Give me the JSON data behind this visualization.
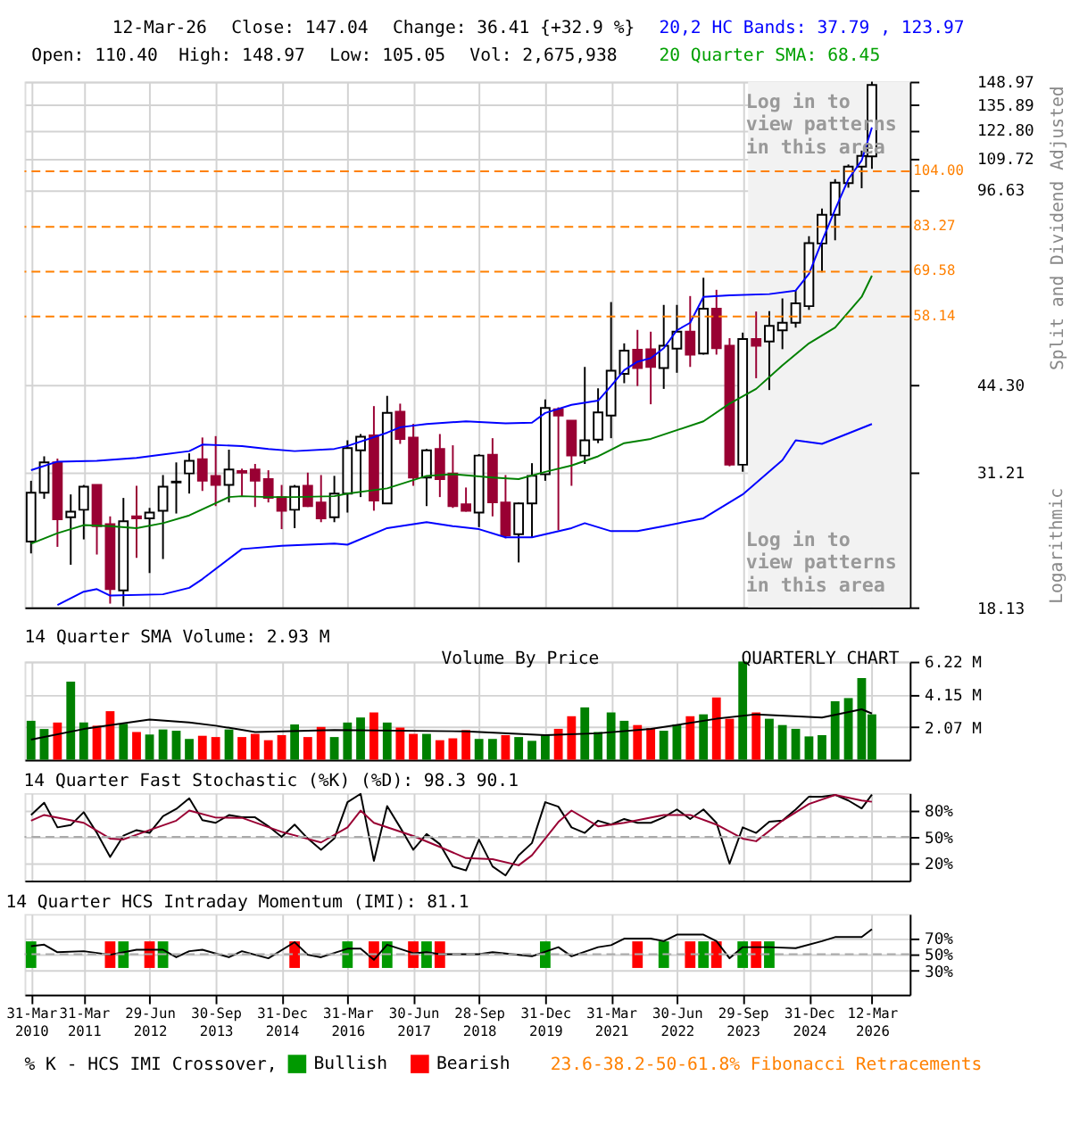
{
  "chart_data": [
    {
      "type": "candlestick",
      "x": [
        "2010-03-31",
        "2010-06-30",
        "2010-09-30",
        "2010-12-31",
        "2011-03-31",
        "2011-06-30",
        "2011-09-30",
        "2011-12-31",
        "2012-03-31",
        "2012-06-29",
        "2012-09-30",
        "2012-12-31",
        "2013-03-31",
        "2013-06-30",
        "2013-09-30",
        "2013-12-31",
        "2014-03-31",
        "2014-06-30",
        "2014-09-30",
        "2014-12-31",
        "2015-03-31",
        "2015-06-30",
        "2015-09-30",
        "2015-12-31",
        "2016-03-31",
        "2016-06-30",
        "2016-09-30",
        "2016-12-31",
        "2017-03-31",
        "2017-06-30",
        "2017-09-30",
        "2017-12-31",
        "2018-03-31",
        "2018-06-30",
        "2018-09-28",
        "2018-12-31",
        "2019-03-31",
        "2019-06-30",
        "2019-09-30",
        "2019-12-31",
        "2020-03-31",
        "2020-06-30",
        "2020-09-30",
        "2020-12-31",
        "2021-03-31",
        "2021-06-30",
        "2021-09-30",
        "2021-12-31",
        "2022-03-31",
        "2022-06-30",
        "2022-09-30",
        "2022-12-31",
        "2023-03-31",
        "2023-06-30",
        "2023-09-29",
        "2023-12-31",
        "2024-03-31",
        "2024-06-30",
        "2024-09-30",
        "2024-12-31",
        "2025-03-31",
        "2025-06-30",
        "2025-09-30",
        "2025-12-31",
        "2026-03-12"
      ],
      "ohlc": [
        [
          23.6,
          30.1,
          22.5,
          28.7
        ],
        [
          28.7,
          33.2,
          28.0,
          32.4
        ],
        [
          32.4,
          32.9,
          23.1,
          25.8
        ],
        [
          26.0,
          28.5,
          21.5,
          26.6
        ],
        [
          26.8,
          29.6,
          23.8,
          29.4
        ],
        [
          29.6,
          29.6,
          22.4,
          25.1
        ],
        [
          25.3,
          26.1,
          18.4,
          19.5
        ],
        [
          19.4,
          28.1,
          18.2,
          25.6
        ],
        [
          26.1,
          29.5,
          22.1,
          25.9
        ],
        [
          25.9,
          27.0,
          20.8,
          26.5
        ],
        [
          26.7,
          30.8,
          22.0,
          29.4
        ],
        [
          29.9,
          32.4,
          26.4,
          30.0
        ],
        [
          31.0,
          33.6,
          28.6,
          32.6
        ],
        [
          32.8,
          35.8,
          28.9,
          30.1
        ],
        [
          30.7,
          36.0,
          27.2,
          29.6
        ],
        [
          29.6,
          34.1,
          27.6,
          31.5
        ],
        [
          31.3,
          31.6,
          28.3,
          31.1
        ],
        [
          31.5,
          32.2,
          27.1,
          30.1
        ],
        [
          30.3,
          31.4,
          27.6,
          28.1
        ],
        [
          28.2,
          29.6,
          24.8,
          26.7
        ],
        [
          26.8,
          29.6,
          24.9,
          29.4
        ],
        [
          29.5,
          31.1,
          27.1,
          27.2
        ],
        [
          27.6,
          30.8,
          25.5,
          25.9
        ],
        [
          26.0,
          30.7,
          25.5,
          28.6
        ],
        [
          28.6,
          35.4,
          26.5,
          34.3
        ],
        [
          34.0,
          36.3,
          28.2,
          35.9
        ],
        [
          36.1,
          40.6,
          26.7,
          27.8
        ],
        [
          27.5,
          42.3,
          27.5,
          39.5
        ],
        [
          39.7,
          41.0,
          34.9,
          35.6
        ],
        [
          35.8,
          37.8,
          29.5,
          30.5
        ],
        [
          30.5,
          34.2,
          27.2,
          34.0
        ],
        [
          34.2,
          36.3,
          28.2,
          30.3
        ],
        [
          31.0,
          34.7,
          27.0,
          27.2
        ],
        [
          27.4,
          29.3,
          26.6,
          26.7
        ],
        [
          26.5,
          33.5,
          25.0,
          33.3
        ],
        [
          33.4,
          35.7,
          26.1,
          27.6
        ],
        [
          27.6,
          30.8,
          23.9,
          24.2
        ],
        [
          24.3,
          27.6,
          21.7,
          27.5
        ],
        [
          27.5,
          32.3,
          24.0,
          30.7
        ],
        [
          30.9,
          41.7,
          30.1,
          40.3
        ],
        [
          40.1,
          40.4,
          24.7,
          39.1
        ],
        [
          38.3,
          38.3,
          29.5,
          33.3
        ],
        [
          33.3,
          47.5,
          32.2,
          35.4
        ],
        [
          35.5,
          43.6,
          35.0,
          39.6
        ],
        [
          39.1,
          61.6,
          35.7,
          46.8
        ],
        [
          46.2,
          52.2,
          44.5,
          50.7
        ],
        [
          50.9,
          55.1,
          44.0,
          47.3
        ],
        [
          51.0,
          54.7,
          40.9,
          47.5
        ],
        [
          47.3,
          60.9,
          43.5,
          51.7
        ],
        [
          51.1,
          60.9,
          46.4,
          54.7
        ],
        [
          54.7,
          63.1,
          47.5,
          49.9
        ],
        [
          50.1,
          67.9,
          49.9,
          60.0
        ],
        [
          60.0,
          64.7,
          49.9,
          51.2
        ],
        [
          51.7,
          53.3,
          31.9,
          32.1
        ],
        [
          32.1,
          54.5,
          31.21,
          53.1
        ],
        [
          53.1,
          59.3,
          45.4,
          51.7
        ],
        [
          52.6,
          59.4,
          43.3,
          56.0
        ],
        [
          55.0,
          62.5,
          51.0,
          56.7
        ],
        [
          56.7,
          64.6,
          55.6,
          61.3
        ],
        [
          60.6,
          80.2,
          59.7,
          78.0
        ],
        [
          77.9,
          89.6,
          69.4,
          87.4
        ],
        [
          87.4,
          100.8,
          78.9,
          99.4
        ],
        [
          99.2,
          106.9,
          97.4,
          106.0
        ],
        [
          106.0,
          113.0,
          97.2,
          110.6
        ],
        [
          110.4,
          148.97,
          105.05,
          147.04
        ]
      ],
      "series": [
        {
          "type": "line",
          "color": "#0000ff",
          "x": [
            "2010-03-31",
            "2010-09-30",
            "2011-06-30",
            "2012-03-31",
            "2013-03-31",
            "2013-06-30",
            "2014-03-31",
            "2014-09-30",
            "2015-03-31",
            "2015-12-31",
            "2016-03-31",
            "2016-12-31",
            "2017-03-31",
            "2017-09-30",
            "2018-06-30",
            "2019-03-31",
            "2019-09-30",
            "2019-12-31",
            "2020-06-30",
            "2020-12-31",
            "2021-03-31",
            "2021-06-30",
            "2021-09-30",
            "2021-12-31",
            "2022-03-31",
            "2022-06-30",
            "2022-09-30",
            "2022-12-31",
            "2023-06-30",
            "2024-03-31",
            "2024-09-30",
            "2024-12-31",
            "2025-03-31",
            "2025-06-30",
            "2025-09-30",
            "2025-12-31",
            "2026-03-12"
          ],
          "values": [
            31.4,
            32.5,
            32.6,
            33.0,
            33.9,
            34.8,
            34.6,
            34.2,
            33.9,
            34.2,
            34.6,
            36.5,
            37.3,
            37.8,
            38.2,
            37.9,
            38.0,
            39.5,
            40.8,
            41.5,
            44.0,
            46.9,
            48.5,
            49.2,
            51.2,
            55.0,
            56.7,
            62.9,
            63.3,
            63.6,
            64.5,
            69.0,
            78.6,
            89.2,
            100.8,
            108.6,
            123.97
          ]
        },
        {
          "type": "line",
          "color": "#0000ff",
          "x": [
            "2010-09-30",
            "2011-03-31",
            "2011-06-30",
            "2011-09-30",
            "2012-09-30",
            "2013-03-31",
            "2013-06-30",
            "2014-03-31",
            "2014-12-31",
            "2015-12-31",
            "2016-03-31",
            "2016-12-31",
            "2017-09-30",
            "2018-03-31",
            "2018-09-28",
            "2019-03-31",
            "2019-09-30",
            "2020-06-30",
            "2020-09-30",
            "2021-03-31",
            "2021-09-30",
            "2022-03-31",
            "2022-12-31",
            "2023-09-29",
            "2024-06-30",
            "2024-09-30",
            "2025-03-31",
            "2025-09-30",
            "2026-03-12"
          ],
          "values": [
            18.3,
            19.3,
            19.5,
            19.0,
            19.1,
            19.6,
            20.3,
            22.9,
            23.2,
            23.4,
            23.3,
            24.9,
            25.5,
            25.1,
            24.8,
            24.0,
            24.0,
            24.9,
            25.4,
            24.6,
            24.6,
            25.1,
            25.9,
            28.5,
            32.7,
            35.4,
            34.9,
            36.4,
            37.79
          ]
        },
        {
          "type": "line",
          "color": "#008000",
          "x": [
            "2010-03-31",
            "2010-09-30",
            "2011-03-31",
            "2011-09-30",
            "2012-03-31",
            "2012-09-30",
            "2013-03-31",
            "2013-12-31",
            "2014-03-31",
            "2014-09-30",
            "2015-03-31",
            "2015-12-31",
            "2016-03-31",
            "2016-12-31",
            "2017-09-30",
            "2018-03-31",
            "2018-12-31",
            "2019-06-30",
            "2019-12-31",
            "2020-06-30",
            "2020-12-31",
            "2021-06-30",
            "2021-12-31",
            "2022-12-31",
            "2023-06-30",
            "2023-12-31",
            "2024-06-30",
            "2024-12-31",
            "2025-06-30",
            "2025-12-31",
            "2026-03-12"
          ],
          "values": [
            23.4,
            24.4,
            25.2,
            25.1,
            24.9,
            25.4,
            26.2,
            28.2,
            28.3,
            28.2,
            28.2,
            28.3,
            28.6,
            29.2,
            30.7,
            30.9,
            30.5,
            30.3,
            31.2,
            32.0,
            33.2,
            35.0,
            35.6,
            38.2,
            41.0,
            43.5,
            47.8,
            52.2,
            55.6,
            62.9,
            68.45
          ]
        }
      ],
      "xlim": [
        "2010-02-14",
        "2026-11-29"
      ],
      "xticks": [
        {
          "value": "2010-03-31",
          "label": null
        },
        {
          "value": "2011-03-31",
          "label": null
        },
        {
          "value": "2012-06-29",
          "label": null
        },
        {
          "value": "2013-09-30",
          "label": null
        },
        {
          "value": "2014-12-31",
          "label": null
        },
        {
          "value": "2016-03-31",
          "label": null
        },
        {
          "value": "2017-06-30",
          "label": null
        },
        {
          "value": "2018-09-28",
          "label": null
        },
        {
          "value": "2019-12-31",
          "label": null
        },
        {
          "value": "2021-03-31",
          "label": null
        },
        {
          "value": "2022-06-30",
          "label": null
        },
        {
          "value": "2023-09-29",
          "label": null
        },
        {
          "value": "2024-12-31",
          "label": null
        },
        {
          "value": "2026-03-12",
          "label": null
        }
      ],
      "ylim": [
        18.13,
        148.97
      ],
      "yticks": [
        18.13,
        31.21,
        {
          "value": 44.3,
          "label": "44.30"
        },
        96.63,
        109.72,
        {
          "value": 122.8,
          "label": "122.80"
        },
        135.89,
        148.97
      ],
      "log": true,
      "grid": true,
      "tick_labels": "y",
      "ylabel": "Split and Dividend Adjusted",
      "ref_lines": [
        {
          "axis": "y",
          "value": 104.0,
          "label": "104.00",
          "color": "#ff8000",
          "line_style": "dashed"
        },
        {
          "axis": "y",
          "value": 83.27,
          "label": "83.27",
          "color": "#ff8000",
          "line_style": "dashed"
        },
        {
          "axis": "y",
          "value": 69.58,
          "label": "69.58",
          "color": "#ff8000",
          "line_style": "dashed"
        },
        {
          "axis": "y",
          "value": 58.14,
          "label": "58.14",
          "color": "#ff8000",
          "line_style": "dashed"
        }
      ],
      "bands": [
        {
          "axis": "x",
          "from": "2023-11-05",
          "to": "2026-11-29",
          "color": "#f2f2f2"
        }
      ],
      "annotations": [
        "12-Mar-26",
        "Close: 147.04",
        "Change: 36.41 {+32.9 %}",
        "Open: 110.40",
        "High: 148.97",
        "Low: 105.05",
        "Vol: 2,675,938",
        "20,2 HC Bands: 37.79 , 123.97",
        "20 Quarter SMA: 68.45",
        "Log in to view patterns in this area",
        "Log in to view patterns in this area",
        "Logarithmic"
      ]
    },
    {
      "type": "bar",
      "title": "14 Quarter SMA Volume: 2.93 M",
      "x": [
        "2010-03-31",
        "2010-06-30",
        "2010-09-30",
        "2010-12-31",
        "2011-03-31",
        "2011-06-30",
        "2011-09-30",
        "2011-12-31",
        "2012-03-31",
        "2012-06-29",
        "2012-09-30",
        "2012-12-31",
        "2013-03-31",
        "2013-06-30",
        "2013-09-30",
        "2013-12-31",
        "2014-03-31",
        "2014-06-30",
        "2014-09-30",
        "2014-12-31",
        "2015-03-31",
        "2015-06-30",
        "2015-09-30",
        "2015-12-31",
        "2016-03-31",
        "2016-06-30",
        "2016-09-30",
        "2016-12-31",
        "2017-03-31",
        "2017-06-30",
        "2017-09-30",
        "2017-12-31",
        "2018-03-31",
        "2018-06-30",
        "2018-09-28",
        "2018-12-31",
        "2019-03-31",
        "2019-06-30",
        "2019-09-30",
        "2019-12-31",
        "2020-03-31",
        "2020-06-30",
        "2020-09-30",
        "2020-12-31",
        "2021-03-31",
        "2021-06-30",
        "2021-09-30",
        "2021-12-31",
        "2022-03-31",
        "2022-06-30",
        "2022-09-30",
        "2022-12-31",
        "2023-03-31",
        "2023-06-30",
        "2023-09-29",
        "2023-12-31",
        "2024-03-31",
        "2024-06-30",
        "2024-09-30",
        "2024-12-31",
        "2025-03-31",
        "2025-06-30",
        "2025-09-30",
        "2025-12-31",
        "2026-03-12"
      ],
      "series": [
        {
          "type": "bar",
          "values": [
            2.47,
            1.95,
            2.36,
            4.95,
            2.36,
            2.16,
            3.08,
            2.28,
            1.76,
            1.6,
            1.92,
            1.84,
            1.32,
            1.52,
            1.44,
            1.92,
            1.44,
            1.64,
            1.24,
            1.56,
            2.24,
            1.44,
            2.08,
            1.44,
            2.36,
            2.68,
            3.0,
            2.36,
            2.04,
            1.64,
            1.64,
            1.24,
            1.36,
            1.88,
            1.32,
            1.32,
            1.56,
            1.44,
            1.2,
            1.56,
            1.96,
            2.76,
            3.32,
            1.76,
            3.0,
            2.47,
            2.2,
            2.0,
            1.84,
            2.24,
            2.76,
            2.88,
            3.95,
            2.6,
            6.22,
            3.0,
            2.6,
            2.2,
            1.96,
            1.48,
            1.56,
            3.71,
            3.91,
            5.18,
            2.88
          ],
          "colors": [
            "#008000",
            "#008000",
            "#ff0000",
            "#008000",
            "#008000",
            "#ff0000",
            "#ff0000",
            "#008000",
            "#ff0000",
            "#008000",
            "#008000",
            "#008000",
            "#008000",
            "#ff0000",
            "#ff0000",
            "#008000",
            "#ff0000",
            "#ff0000",
            "#ff0000",
            "#ff0000",
            "#008000",
            "#ff0000",
            "#ff0000",
            "#008000",
            "#008000",
            "#008000",
            "#ff0000",
            "#008000",
            "#ff0000",
            "#ff0000",
            "#008000",
            "#ff0000",
            "#ff0000",
            "#ff0000",
            "#008000",
            "#008000",
            "#ff0000",
            "#008000",
            "#008000",
            "#008000",
            "#ff0000",
            "#ff0000",
            "#008000",
            "#008000",
            "#008000",
            "#008000",
            "#ff0000",
            "#ff0000",
            "#008000",
            "#008000",
            "#ff0000",
            "#008000",
            "#ff0000",
            "#ff0000",
            "#008000",
            "#ff0000",
            "#008000",
            "#008000",
            "#008000",
            "#008000",
            "#008000",
            "#008000",
            "#008000",
            "#008000",
            "#008000"
          ]
        },
        {
          "type": "line",
          "color": "#000000",
          "x": [
            "2010-03-31",
            "2011-03-31",
            "2012-06-29",
            "2013-03-31",
            "2013-09-30",
            "2014-06-30",
            "2015-12-31",
            "2018-06-30",
            "2019-12-31",
            "2020-12-31",
            "2021-12-31",
            "2023-03-31",
            "2023-12-31",
            "2025-03-31",
            "2025-12-31",
            "2026-03-12"
          ],
          "values": [
            1.28,
            1.95,
            2.55,
            2.36,
            2.16,
            1.76,
            1.88,
            1.8,
            1.56,
            1.68,
            1.95,
            2.6,
            2.88,
            2.68,
            3.2,
            2.93
          ]
        }
      ],
      "xlim": [
        "2010-02-14",
        "2026-11-29"
      ],
      "xticks": [
        {
          "value": "2010-03-31",
          "label": null
        },
        {
          "value": "2011-03-31",
          "label": null
        },
        {
          "value": "2012-06-29",
          "label": null
        },
        {
          "value": "2013-09-30",
          "label": null
        },
        {
          "value": "2014-12-31",
          "label": null
        },
        {
          "value": "2016-03-31",
          "label": null
        },
        {
          "value": "2017-06-30",
          "label": null
        },
        {
          "value": "2018-09-28",
          "label": null
        },
        {
          "value": "2019-12-31",
          "label": null
        },
        {
          "value": "2021-03-31",
          "label": null
        },
        {
          "value": "2022-06-30",
          "label": null
        },
        {
          "value": "2023-09-29",
          "label": null
        },
        {
          "value": "2024-12-31",
          "label": null
        },
        {
          "value": "2026-03-12",
          "label": null
        }
      ],
      "ylim": [
        0,
        6.22
      ],
      "yticks": [
        {
          "value": 2.07,
          "label": "2.07 M"
        },
        {
          "value": 4.15,
          "label": "4.15 M"
        },
        {
          "value": 6.22,
          "label": "6.22 M"
        }
      ],
      "grid": true,
      "tick_labels": "y",
      "annotations": [
        "Volume By Price",
        "QUARTERLY CHART"
      ]
    },
    {
      "type": "line",
      "title": "14 Quarter Fast Stochastic (%K) (%D): 98.3 90.1",
      "x": [
        "2010-03-31",
        "2010-06-30",
        "2010-09-30",
        "2010-12-31",
        "2011-03-31",
        "2011-06-30",
        "2011-09-30",
        "2011-12-31",
        "2012-03-31",
        "2012-06-29",
        "2012-09-30",
        "2012-12-31",
        "2013-03-31",
        "2013-06-30",
        "2013-09-30",
        "2013-12-31",
        "2014-03-31",
        "2014-06-30",
        "2014-09-30",
        "2014-12-31",
        "2015-03-31",
        "2015-06-30",
        "2015-09-30",
        "2015-12-31",
        "2016-03-31",
        "2016-06-30",
        "2016-09-30",
        "2016-12-31",
        "2017-03-31",
        "2017-06-30",
        "2017-09-30",
        "2017-12-31",
        "2018-03-31",
        "2018-06-30",
        "2018-09-28",
        "2018-12-31",
        "2019-03-31",
        "2019-06-30",
        "2019-09-30",
        "2019-12-31",
        "2020-03-31",
        "2020-06-30",
        "2020-09-30",
        "2020-12-31",
        "2021-03-31",
        "2021-06-30",
        "2021-09-30",
        "2021-12-31",
        "2022-03-31",
        "2022-06-30",
        "2022-09-30",
        "2022-12-31",
        "2023-03-31",
        "2023-06-30",
        "2023-09-29",
        "2023-12-31",
        "2024-03-31",
        "2024-06-30",
        "2024-09-30",
        "2024-12-31",
        "2025-03-31",
        "2025-06-30",
        "2025-09-30",
        "2025-12-31",
        "2026-03-12"
      ],
      "series": [
        {
          "color": "#000000",
          "values": [
            74.9,
            88.9,
            60.8,
            63.4,
            78.1,
            54.5,
            27.0,
            51.3,
            57.7,
            54.5,
            73.6,
            81.9,
            94.0,
            69.1,
            66.0,
            74.9,
            72.3,
            72.3,
            62.1,
            50,
            64.0,
            48.1,
            35.3,
            48.1,
            89.6,
            99.1,
            22.6,
            85.1,
            60.8,
            35.3,
            53.2,
            41.7,
            16.2,
            11.7,
            46.8,
            16.2,
            6.0,
            28.9,
            43.0,
            89.6,
            84.5,
            60.8,
            54.5,
            68.5,
            64.0,
            70.4,
            66.0,
            66.0,
            72.3,
            81.3,
            70.4,
            81.3,
            66.0,
            19.4,
            60.8,
            54.5,
            67.2,
            68.5,
            81.3,
            95.9,
            95.9,
            97.9,
            91.5,
            82.5,
            98.3
          ]
        },
        {
          "color": "#990033",
          "x": [
            "2010-03-31",
            "2010-06-30",
            "2011-03-31",
            "2011-09-30",
            "2011-12-31",
            "2012-06-29",
            "2012-12-31",
            "2013-03-31",
            "2013-09-30",
            "2014-03-31",
            "2014-12-31",
            "2015-09-30",
            "2016-03-31",
            "2016-06-30",
            "2016-09-30",
            "2017-06-30",
            "2017-12-31",
            "2018-06-30",
            "2018-12-31",
            "2019-06-30",
            "2019-09-30",
            "2020-03-31",
            "2020-06-30",
            "2020-12-31",
            "2021-06-30",
            "2022-03-31",
            "2022-09-30",
            "2023-03-31",
            "2023-09-29",
            "2023-12-31",
            "2024-06-30",
            "2024-12-31",
            "2025-06-30",
            "2025-12-31",
            "2026-03-12"
          ],
          "values": [
            68.5,
            75,
            66,
            48,
            47,
            57.7,
            68.5,
            80,
            72,
            71.7,
            55.7,
            43.6,
            60.8,
            80,
            66,
            51,
            38.5,
            25.7,
            24.5,
            17.5,
            29,
            67,
            80,
            62,
            66,
            75,
            75,
            64,
            48,
            45,
            68.5,
            87.6,
            97.9,
            91.5,
            90.1
          ]
        }
      ],
      "xlim": [
        "2010-02-14",
        "2026-11-29"
      ],
      "xticks": [
        {
          "value": "2010-03-31",
          "label": null
        },
        {
          "value": "2011-03-31",
          "label": null
        },
        {
          "value": "2012-06-29",
          "label": null
        },
        {
          "value": "2013-09-30",
          "label": null
        },
        {
          "value": "2014-12-31",
          "label": null
        },
        {
          "value": "2016-03-31",
          "label": null
        },
        {
          "value": "2017-06-30",
          "label": null
        },
        {
          "value": "2018-09-28",
          "label": null
        },
        {
          "value": "2019-12-31",
          "label": null
        },
        {
          "value": "2021-03-31",
          "label": null
        },
        {
          "value": "2022-06-30",
          "label": null
        },
        {
          "value": "2023-09-29",
          "label": null
        },
        {
          "value": "2024-12-31",
          "label": null
        },
        {
          "value": "2026-03-12",
          "label": null
        }
      ],
      "ylim": [
        0,
        100
      ],
      "yticks": [
        {
          "value": 20,
          "label": "20%"
        },
        {
          "value": 50,
          "label": "50%"
        },
        {
          "value": 80,
          "label": "80%"
        }
      ],
      "grid": true,
      "tick_labels": "y",
      "ref_lines": [
        {
          "axis": "y",
          "value": 50,
          "color": "#aaaaaa",
          "line_style": "dashed"
        }
      ]
    },
    {
      "type": "line",
      "title": "14 Quarter HCS Intraday Momentum (IMI): 81.1",
      "series": [
        {
          "type": "bar",
          "name": "Bullish",
          "color": "#009900",
          "x": [
            "2010-03-31",
            "2011-12-31",
            "2012-09-30",
            "2016-03-31",
            "2016-12-31",
            "2017-09-30",
            "2019-12-31",
            "2022-03-31",
            "2022-12-31",
            "2023-09-29",
            "2024-03-31"
          ],
          "base": [
            33,
            33,
            33,
            33,
            33,
            33,
            33,
            33,
            33,
            33,
            33
          ],
          "values": [
            33,
            33,
            33,
            33,
            33,
            33,
            33,
            33,
            33,
            33,
            33
          ]
        },
        {
          "type": "bar",
          "name": "Bearish",
          "color": "#ff0000",
          "x": [
            "2011-09-30",
            "2012-06-29",
            "2015-03-31",
            "2016-09-30",
            "2017-06-30",
            "2017-12-31",
            "2021-09-30",
            "2022-09-30",
            "2023-03-31",
            "2023-12-31"
          ],
          "base": [
            33,
            33,
            33,
            33,
            33,
            33,
            33,
            33,
            33,
            33
          ],
          "values": [
            33,
            33,
            33,
            33,
            33,
            33,
            33,
            33,
            33,
            33
          ]
        },
        {
          "type": "line",
          "color": "#000000",
          "x": [
            "2010-03-31",
            "2010-06-30",
            "2010-09-30",
            "2011-03-31",
            "2011-09-30",
            "2012-03-31",
            "2012-09-30",
            "2012-12-31",
            "2013-03-31",
            "2013-06-30",
            "2013-12-31",
            "2014-03-31",
            "2014-09-30",
            "2015-03-31",
            "2015-06-30",
            "2015-09-30",
            "2016-03-31",
            "2016-06-30",
            "2016-09-30",
            "2016-12-31",
            "2017-06-30",
            "2017-09-30",
            "2017-12-31",
            "2018-09-28",
            "2018-12-31",
            "2019-09-30",
            "2020-03-31",
            "2020-06-30",
            "2020-12-31",
            "2021-03-31",
            "2021-06-30",
            "2021-12-31",
            "2022-03-31",
            "2022-06-30",
            "2022-12-31",
            "2023-03-31",
            "2023-06-30",
            "2023-09-29",
            "2024-03-31",
            "2024-09-30",
            "2025-03-31",
            "2025-06-30",
            "2025-12-31",
            "2026-03-12"
          ],
          "values": [
            60,
            61.9,
            52.5,
            53.8,
            49.4,
            55.6,
            55.6,
            46.3,
            53.8,
            55.6,
            46.3,
            53.8,
            45,
            65,
            49.4,
            46.3,
            56.9,
            56.9,
            43.1,
            61.9,
            51.3,
            52.5,
            50,
            50,
            52.5,
            47.5,
            58.8,
            47.5,
            58.8,
            61.3,
            69.4,
            69.4,
            66.3,
            74.4,
            74.4,
            66.3,
            45,
            58.8,
            58.8,
            57.5,
            66.3,
            71.3,
            71.3,
            81.1
          ]
        }
      ],
      "xlim": [
        "2010-02-14",
        "2026-11-29"
      ],
      "xticks": [
        {
          "value": "2010-03-31",
          "label": "31-Mar 2010"
        },
        {
          "value": "2011-03-31",
          "label": "31-Mar 2011"
        },
        {
          "value": "2012-06-29",
          "label": "29-Jun 2012"
        },
        {
          "value": "2013-09-30",
          "label": "30-Sep 2013"
        },
        {
          "value": "2014-12-31",
          "label": "31-Dec 2014"
        },
        {
          "value": "2016-03-31",
          "label": "31-Mar 2016"
        },
        {
          "value": "2017-06-30",
          "label": "30-Jun 2017"
        },
        {
          "value": "2018-09-28",
          "label": "28-Sep 2018"
        },
        {
          "value": "2019-12-31",
          "label": "31-Dec 2019"
        },
        {
          "value": "2021-03-31",
          "label": "31-Mar 2021"
        },
        {
          "value": "2022-06-30",
          "label": "30-Jun 2022"
        },
        {
          "value": "2023-09-29",
          "label": "29-Sep 2023"
        },
        {
          "value": "2024-12-31",
          "label": "31-Dec 2024"
        },
        {
          "value": "2026-03-12",
          "label": "12-Mar 2026"
        }
      ],
      "ylim": [
        0,
        100
      ],
      "yticks": [
        {
          "value": 30,
          "label": "30%"
        },
        {
          "value": 50,
          "label": "50%"
        },
        {
          "value": 70,
          "label": "70%"
        }
      ],
      "grid": true,
      "legend": "bottom",
      "ref_lines": [
        {
          "axis": "y",
          "value": 50,
          "color": "#aaaaaa",
          "line_style": "dashed"
        }
      ],
      "annotations": [
        "% K - HCS IMI Crossover,",
        "23.6-38.2-50-61.8% Fibonacci Retracements"
      ]
    }
  ]
}
